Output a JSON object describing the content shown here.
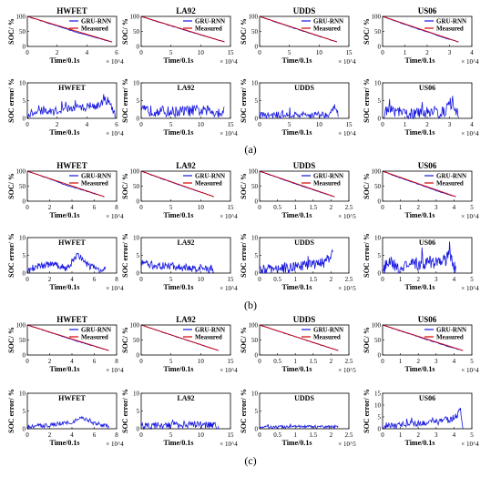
{
  "colors": {
    "predicted": "#1515e0",
    "measured": "#d40000",
    "axis": "#000000"
  },
  "legend": {
    "predicted_label": "GRU-RNN",
    "measured_label": "Measured"
  },
  "labels": {
    "soc_ylabel": "SOC/ %",
    "err_ylabel": "SOC  error/ %",
    "xlabel": "Time/0.1s"
  },
  "chart_data": [
    {
      "group_label": "(a)",
      "panels": [
        {
          "title": "HWFET",
          "type": "line",
          "xmax": 6,
          "ylim": [
            0,
            100
          ],
          "yticks": [
            0,
            50,
            100
          ],
          "xticks": [
            0,
            2,
            4,
            6
          ],
          "multiplier": "× 10^4",
          "soc_x": [
            0,
            5.7
          ],
          "soc_y": [
            100,
            15
          ],
          "pred_dev": [
            0,
            0.5,
            1.5,
            2.5,
            3.5,
            2,
            1.5,
            0
          ],
          "err_x": [
            0,
            0.5,
            1,
            1.5,
            2,
            2.5,
            3,
            3.5,
            4,
            4.5,
            5,
            5.4,
            5.7,
            5.9
          ],
          "err_y": [
            1,
            1.5,
            2,
            1.8,
            2.2,
            2.5,
            2.8,
            3,
            3.2,
            3.5,
            4,
            5,
            3,
            0.5
          ],
          "err_ylim": [
            0,
            10
          ],
          "err_yticks": [
            0,
            5,
            10
          ],
          "err_amp": 1.2
        },
        {
          "title": "LA92",
          "type": "line",
          "xmax": 15,
          "ylim": [
            0,
            100
          ],
          "yticks": [
            0,
            50,
            100
          ],
          "xticks": [
            0,
            5,
            10,
            15
          ],
          "multiplier": "× 10^4",
          "soc_x": [
            0,
            14
          ],
          "soc_y": [
            100,
            15
          ],
          "pred_dev": [
            0,
            1,
            1,
            1,
            0.5,
            0
          ],
          "err_x": [
            0,
            1,
            3,
            5,
            7,
            9,
            11,
            13,
            14
          ],
          "err_y": [
            2,
            2.2,
            2,
            1.8,
            2,
            2.2,
            2,
            1.8,
            2
          ],
          "err_ylim": [
            0,
            10
          ],
          "err_yticks": [
            0,
            5,
            10
          ],
          "err_amp": 1.6
        },
        {
          "title": "UDDS",
          "type": "line",
          "xmax": 15,
          "ylim": [
            0,
            100
          ],
          "yticks": [
            0,
            50,
            100
          ],
          "xticks": [
            0,
            5,
            10,
            15
          ],
          "multiplier": "× 10^4",
          "soc_x": [
            0,
            13
          ],
          "soc_y": [
            100,
            15
          ],
          "pred_dev": [
            0,
            1,
            1.2,
            1,
            0.8,
            0
          ],
          "err_x": [
            0,
            1,
            3,
            5,
            7,
            9,
            11,
            12,
            12.8,
            13.2
          ],
          "err_y": [
            1,
            0.8,
            0.9,
            1,
            0.9,
            1,
            1.1,
            1.5,
            3.5,
            0.5
          ],
          "err_ylim": [
            0,
            10
          ],
          "err_yticks": [
            0,
            5,
            10
          ],
          "err_amp": 1.0
        },
        {
          "title": "US06",
          "type": "line",
          "xmax": 4,
          "ylim": [
            0,
            100
          ],
          "yticks": [
            0,
            50,
            100
          ],
          "xticks": [
            0,
            1,
            2,
            3,
            4
          ],
          "multiplier": "× 10^4",
          "soc_x": [
            0,
            3.4
          ],
          "soc_y": [
            100,
            15
          ],
          "pred_dev": [
            0,
            1.5,
            2,
            1.5,
            2,
            0
          ],
          "err_x": [
            0,
            0.3,
            0.8,
            1.2,
            1.8,
            2.2,
            2.6,
            2.8,
            3,
            3.2,
            3.4
          ],
          "err_y": [
            1,
            2.5,
            1.5,
            1.2,
            1.5,
            2,
            1.5,
            2,
            4.5,
            3,
            1
          ],
          "err_ylim": [
            0,
            10
          ],
          "err_yticks": [
            0,
            5,
            10
          ],
          "err_amp": 1.6
        }
      ]
    },
    {
      "group_label": "(b)",
      "panels": [
        {
          "title": "HWFET",
          "type": "line",
          "xmax": 8,
          "ylim": [
            0,
            100
          ],
          "yticks": [
            0,
            50,
            100
          ],
          "xticks": [
            0,
            2,
            4,
            6,
            8
          ],
          "multiplier": "× 10^4",
          "soc_x": [
            0,
            6.9
          ],
          "soc_y": [
            100,
            15
          ],
          "pred_dev": [
            0,
            0.5,
            1,
            4,
            2,
            1,
            0
          ],
          "err_x": [
            0,
            0.5,
            1,
            2,
            3,
            3.5,
            4,
            4.5,
            5,
            5.5,
            6,
            6.5,
            7
          ],
          "err_y": [
            0.5,
            1.5,
            2,
            2.5,
            1.8,
            1.5,
            3,
            5,
            4,
            2,
            1.5,
            1,
            0.5
          ],
          "err_ylim": [
            0,
            10
          ],
          "err_yticks": [
            0,
            5,
            10
          ],
          "err_amp": 1.0
        },
        {
          "title": "LA92",
          "type": "line",
          "xmax": 15,
          "ylim": [
            0,
            100
          ],
          "yticks": [
            0,
            50,
            100
          ],
          "xticks": [
            0,
            5,
            10,
            15
          ],
          "multiplier": "× 10^4",
          "soc_x": [
            0,
            12.2
          ],
          "soc_y": [
            100,
            15
          ],
          "pred_dev": [
            0,
            1,
            1,
            1,
            0.5,
            0
          ],
          "err_x": [
            0,
            1,
            3,
            5,
            7,
            9,
            11,
            12.2
          ],
          "err_y": [
            2.5,
            2.3,
            2,
            1.8,
            1.5,
            1.3,
            1.2,
            1
          ],
          "err_ylim": [
            0,
            10
          ],
          "err_yticks": [
            0,
            5,
            10
          ],
          "err_amp": 1.2
        },
        {
          "title": "UDDS",
          "type": "line",
          "xmax": 2.5,
          "ylim": [
            0,
            100
          ],
          "yticks": [
            0,
            50,
            100
          ],
          "xticks": [
            0,
            0.5,
            1,
            1.5,
            2,
            2.5
          ],
          "multiplier": "× 10^5",
          "soc_x": [
            0,
            2.1
          ],
          "soc_y": [
            100,
            15
          ],
          "pred_dev": [
            0,
            1,
            1.5,
            1.5,
            1,
            0
          ],
          "err_x": [
            0,
            0.3,
            0.6,
            0.9,
            1.2,
            1.5,
            1.8,
            1.95,
            2.05
          ],
          "err_y": [
            1,
            1,
            1.2,
            1.5,
            2,
            2.5,
            3,
            4,
            6
          ],
          "err_ylim": [
            0,
            10
          ],
          "err_yticks": [
            0,
            5,
            10
          ],
          "err_amp": 1.5
        },
        {
          "title": "US06",
          "type": "line",
          "xmax": 5,
          "ylim": [
            0,
            100
          ],
          "yticks": [
            0,
            50,
            100
          ],
          "xticks": [
            0,
            1,
            2,
            3,
            4,
            5
          ],
          "multiplier": "× 10^4",
          "soc_x": [
            0,
            4.1
          ],
          "soc_y": [
            100,
            15
          ],
          "pred_dev": [
            0,
            2,
            1.5,
            2,
            2.5,
            0
          ],
          "err_x": [
            0,
            0.3,
            0.8,
            1.5,
            2,
            2.5,
            3,
            3.5,
            3.8,
            4,
            4.1
          ],
          "err_y": [
            1,
            3,
            1.5,
            2,
            2.5,
            3,
            3,
            3.5,
            5.5,
            2,
            0.5
          ],
          "err_ylim": [
            0,
            10
          ],
          "err_yticks": [
            0,
            5,
            10
          ],
          "err_amp": 2.0
        }
      ]
    },
    {
      "group_label": "(c)",
      "panels": [
        {
          "title": "HWFET",
          "type": "line",
          "xmax": 8,
          "ylim": [
            0,
            100
          ],
          "yticks": [
            0,
            50,
            100
          ],
          "xticks": [
            0,
            2,
            4,
            6,
            8
          ],
          "multiplier": "× 10^4",
          "soc_x": [
            0,
            7.3
          ],
          "soc_y": [
            100,
            15
          ],
          "pred_dev": [
            0,
            0.5,
            1,
            1.5,
            1.5,
            1,
            0
          ],
          "err_x": [
            0,
            1,
            2,
            3,
            4,
            4.5,
            5,
            5.5,
            6,
            7,
            7.3
          ],
          "err_y": [
            0.5,
            0.8,
            1,
            1.5,
            2,
            2.5,
            3,
            2.5,
            1.5,
            1,
            0.5
          ],
          "err_ylim": [
            0,
            10
          ],
          "err_yticks": [
            0,
            5,
            10
          ],
          "err_amp": 0.6
        },
        {
          "title": "LA92",
          "type": "line",
          "xmax": 15,
          "ylim": [
            0,
            100
          ],
          "yticks": [
            0,
            50,
            100
          ],
          "xticks": [
            0,
            5,
            10,
            15
          ],
          "multiplier": "× 10^4",
          "soc_x": [
            0,
            13
          ],
          "soc_y": [
            100,
            15
          ],
          "pred_dev": [
            0,
            0.5,
            0.5,
            0.5,
            0
          ],
          "err_x": [
            0,
            2,
            4,
            6,
            8,
            10,
            12,
            13
          ],
          "err_y": [
            0.8,
            0.9,
            1,
            1.1,
            1.2,
            1.1,
            1,
            0.9
          ],
          "err_ylim": [
            0,
            10
          ],
          "err_yticks": [
            0,
            5,
            10
          ],
          "err_amp": 1.0
        },
        {
          "title": "UDDS",
          "type": "line",
          "xmax": 2.5,
          "ylim": [
            0,
            100
          ],
          "yticks": [
            0,
            50,
            100
          ],
          "xticks": [
            0,
            0.5,
            1,
            1.5,
            2,
            2.5
          ],
          "multiplier": "× 10^5",
          "soc_x": [
            0,
            2.2
          ],
          "soc_y": [
            100,
            15
          ],
          "pred_dev": [
            0,
            0.3,
            0.3,
            0.3,
            0
          ],
          "err_x": [
            0,
            0.5,
            1,
            1.5,
            2,
            2.2
          ],
          "err_y": [
            0.5,
            0.5,
            0.6,
            0.6,
            0.5,
            0.5
          ],
          "err_ylim": [
            0,
            10
          ],
          "err_yticks": [
            0,
            5,
            10
          ],
          "err_amp": 0.4
        },
        {
          "title": "US06",
          "type": "line",
          "xmax": 5,
          "ylim": [
            0,
            100
          ],
          "yticks": [
            0,
            50,
            100
          ],
          "xticks": [
            0,
            1,
            2,
            3,
            4,
            5
          ],
          "multiplier": "× 10^4",
          "soc_x": [
            0,
            4.5
          ],
          "soc_y": [
            100,
            15
          ],
          "pred_dev": [
            0,
            1,
            1,
            1.5,
            2,
            0
          ],
          "err_x": [
            0,
            0.5,
            1,
            1.5,
            2,
            2.5,
            3,
            3.5,
            3.8,
            4,
            4.2,
            4.35,
            4.5
          ],
          "err_y": [
            1,
            1.5,
            1.5,
            2,
            2.5,
            2.5,
            3,
            3.5,
            4,
            4.5,
            6,
            9,
            1
          ],
          "err_ylim": [
            0,
            15
          ],
          "err_yticks": [
            0,
            5,
            10,
            15
          ],
          "err_amp": 1.5
        }
      ]
    }
  ]
}
